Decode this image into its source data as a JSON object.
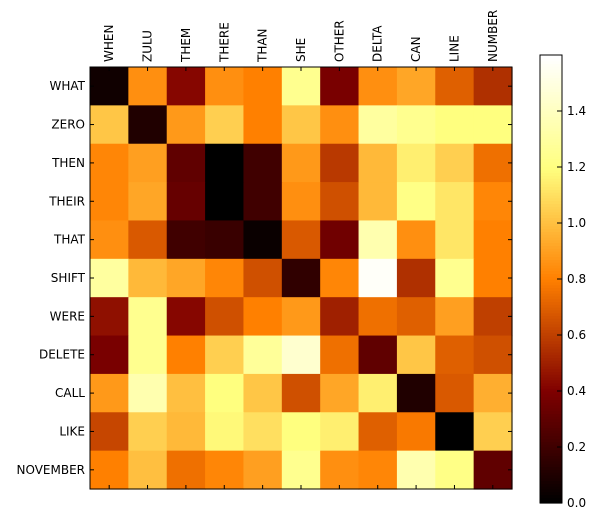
{
  "chart_data": {
    "type": "heatmap",
    "x_labels": [
      "WHEN",
      "ZULU",
      "THEM",
      "THERE",
      "THAN",
      "SHE",
      "OTHER",
      "DELTA",
      "CAN",
      "LINE",
      "NUMBER"
    ],
    "y_labels": [
      "WHAT",
      "ZERO",
      "THEN",
      "THEIR",
      "THAT",
      "SHIFT",
      "WERE",
      "DELETE",
      "CALL",
      "LIKE",
      "NOVEMBER"
    ],
    "values": [
      [
        0.05,
        0.85,
        0.42,
        0.85,
        0.8,
        1.25,
        0.38,
        0.85,
        0.92,
        0.7,
        0.55
      ],
      [
        1.02,
        0.1,
        0.88,
        1.05,
        0.8,
        1.02,
        0.85,
        1.3,
        1.25,
        1.2,
        1.2
      ],
      [
        0.82,
        0.9,
        0.3,
        0.0,
        0.2,
        0.88,
        0.58,
        0.98,
        1.15,
        1.05,
        0.75
      ],
      [
        0.82,
        0.92,
        0.32,
        0.0,
        0.2,
        0.85,
        0.65,
        0.98,
        1.22,
        1.12,
        0.82
      ],
      [
        0.85,
        0.68,
        0.2,
        0.18,
        0.03,
        0.68,
        0.35,
        1.35,
        0.85,
        1.12,
        0.8
      ],
      [
        1.3,
        0.98,
        0.92,
        0.82,
        0.65,
        0.15,
        0.82,
        1.58,
        0.55,
        1.25,
        0.8
      ],
      [
        0.45,
        1.25,
        0.42,
        0.65,
        0.8,
        0.88,
        0.5,
        0.75,
        0.7,
        0.9,
        0.6
      ],
      [
        0.38,
        1.25,
        0.8,
        1.05,
        1.28,
        1.45,
        0.75,
        0.3,
        1.02,
        0.7,
        0.65
      ],
      [
        0.88,
        1.35,
        1.0,
        1.2,
        1.02,
        0.65,
        0.92,
        1.15,
        0.1,
        0.68,
        0.95
      ],
      [
        0.62,
        1.05,
        0.98,
        1.18,
        1.1,
        1.2,
        1.15,
        0.7,
        0.78,
        0.0,
        1.05
      ],
      [
        0.8,
        1.0,
        0.75,
        0.82,
        0.9,
        1.25,
        0.85,
        0.82,
        1.35,
        1.22,
        0.3
      ]
    ],
    "colormap": "afmhot",
    "vmin": 0.0,
    "vmax": 1.6,
    "colorbar_ticks": [
      "0.0",
      "0.2",
      "0.4",
      "0.6",
      "0.8",
      "1.0",
      "1.2",
      "1.4"
    ],
    "colorbar_tick_values": [
      0.0,
      0.2,
      0.4,
      0.6,
      0.8,
      1.0,
      1.2,
      1.4
    ],
    "grid": false,
    "legend": "colorbar-right"
  }
}
